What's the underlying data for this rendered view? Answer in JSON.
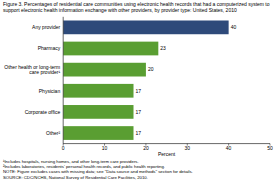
{
  "chart_data": {
    "type": "bar",
    "orientation": "horizontal",
    "title": "Figure 3. Percentages of residential care communities using electronic health records that had a computerized system to",
    "subtitle": "support electronic health information exchange with other providers, by provider type: United States, 2010",
    "categories": [
      "Any provider",
      "Pharmacy",
      "Other health or long-term\ncare provider¹",
      "Physician",
      "Corporate office",
      "Other²"
    ],
    "values": [
      40,
      23,
      20,
      17,
      17,
      17
    ],
    "colors": [
      "#2e4a7a",
      "#5a9e32",
      "#5a9e32",
      "#5a9e32",
      "#5a9e32",
      "#5a9e32"
    ],
    "x_label": "Percent",
    "xlim": [
      0,
      50
    ],
    "xticks": [
      0,
      10,
      20,
      30,
      40,
      50
    ],
    "data_labels": true,
    "grid": false,
    "annotations": [
      "¹Includes hospitals, nursing homes, and other long-term care providers.",
      "²Includes laboratories, residents' personal health records, and public health reporting.",
      "NOTE: Figure excludes cases with missing data; see \"Data source and methods\" section for details.",
      "SOURCE: CDC/NCHS, National Survey of Residential Care Facilities, 2010."
    ]
  }
}
